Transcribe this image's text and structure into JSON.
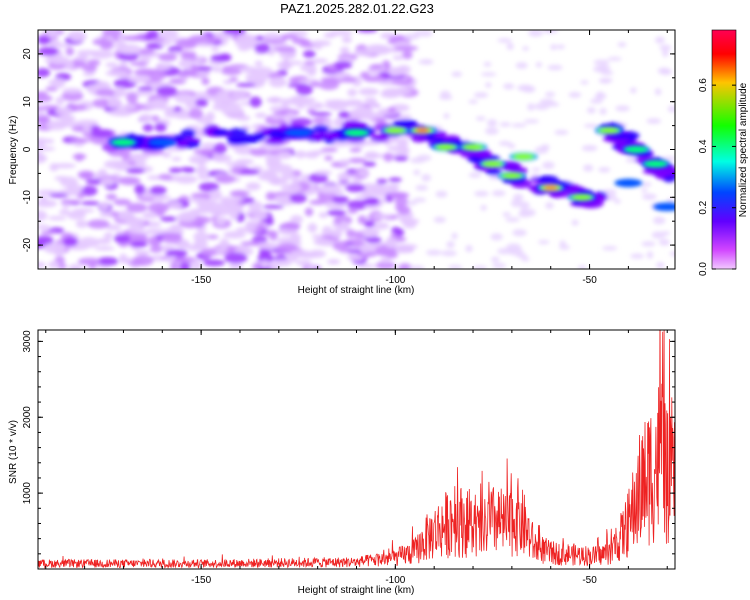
{
  "title": "PAZ1.2025.282.01.22.G23",
  "chart_data": [
    {
      "type": "heatmap",
      "xlabel": "Height of straight line (km)",
      "ylabel": "Frequency (Hz)",
      "xlim": [
        -192,
        -28
      ],
      "ylim": [
        -25,
        25
      ],
      "xticks": [
        -150,
        -100,
        -50
      ],
      "xtick_labels": [
        "-150",
        "-100",
        "-50"
      ],
      "yticks": [
        -20,
        -10,
        0,
        10,
        20
      ],
      "ytick_labels": [
        "-20",
        "-10",
        "0",
        "10",
        "20"
      ],
      "colorbar": {
        "label": "Normalized spectral amplitude",
        "range": [
          0,
          0.78
        ],
        "ticks": [
          0.0,
          0.2,
          0.4,
          0.6
        ],
        "tick_labels": [
          "0.0",
          "0.2",
          "0.4",
          "0.6"
        ],
        "colors": [
          "#ffffff",
          "#c000ff",
          "#0000ff",
          "#00ffff",
          "#00ff00",
          "#ffff00",
          "#ff0000",
          "#ff0080"
        ]
      },
      "ridge": [
        {
          "x": -172,
          "y": 1.5
        },
        {
          "x": -160,
          "y": 1.5
        },
        {
          "x": -145,
          "y": 3
        },
        {
          "x": -130,
          "y": 3
        },
        {
          "x": -115,
          "y": 3.5
        },
        {
          "x": -100,
          "y": 4
        },
        {
          "x": -93,
          "y": 4
        },
        {
          "x": -85,
          "y": 0.5
        },
        {
          "x": -78,
          "y": -2
        },
        {
          "x": -70,
          "y": -5
        },
        {
          "x": -60,
          "y": -8
        },
        {
          "x": -52,
          "y": -10
        },
        {
          "x": -47,
          "y": -11
        }
      ],
      "ridge2": [
        {
          "x": -45,
          "y": 4.5
        },
        {
          "x": -40,
          "y": 1
        },
        {
          "x": -35,
          "y": -2.5
        },
        {
          "x": -28,
          "y": -6
        }
      ],
      "peaks": [
        {
          "x": -170,
          "y": 1.5,
          "amp": 0.35
        },
        {
          "x": -160,
          "y": 1.5,
          "amp": 0.3
        },
        {
          "x": -125,
          "y": 3.5,
          "amp": 0.3
        },
        {
          "x": -110,
          "y": 3.5,
          "amp": 0.35
        },
        {
          "x": -100,
          "y": 4,
          "amp": 0.5
        },
        {
          "x": -93,
          "y": 4,
          "amp": 0.78
        },
        {
          "x": -87,
          "y": 0.5,
          "amp": 0.55
        },
        {
          "x": -80,
          "y": 0.5,
          "amp": 0.45
        },
        {
          "x": -75,
          "y": -3,
          "amp": 0.5
        },
        {
          "x": -70,
          "y": -5.5,
          "amp": 0.5
        },
        {
          "x": -67,
          "y": -1.5,
          "amp": 0.45
        },
        {
          "x": -60,
          "y": -8,
          "amp": 0.62
        },
        {
          "x": -52,
          "y": -10,
          "amp": 0.5
        },
        {
          "x": -45,
          "y": 4,
          "amp": 0.45
        },
        {
          "x": -38,
          "y": 0,
          "amp": 0.4
        },
        {
          "x": -33,
          "y": -3,
          "amp": 0.35
        },
        {
          "x": -40,
          "y": -7,
          "amp": 0.3
        },
        {
          "x": -30,
          "y": -12,
          "amp": 0.3
        }
      ]
    },
    {
      "type": "line",
      "xlabel": "Height of straight line (km)",
      "ylabel": "SNR (10 * v/v)",
      "xlim": [
        -192,
        -28
      ],
      "ylim": [
        0,
        3150
      ],
      "xticks": [
        -150,
        -100,
        -50
      ],
      "xtick_labels": [
        "-150",
        "-100",
        "-50"
      ],
      "yticks": [
        1000,
        2000,
        3000
      ],
      "ytick_labels": [
        "1000",
        "2000",
        "3000"
      ],
      "line_color": "#ee2222",
      "envelope_km": [
        -192,
        -150,
        -110,
        -100,
        -95,
        -92,
        -88,
        -85,
        -82,
        -78,
        -76,
        -74,
        -71,
        -69,
        -67,
        -64,
        -60,
        -55,
        -52,
        -48,
        -44,
        -40,
        -37,
        -34,
        -31,
        -30,
        -28
      ],
      "envelope_snr": [
        110,
        110,
        140,
        230,
        350,
        620,
        850,
        1000,
        950,
        720,
        900,
        1000,
        850,
        1100,
        900,
        450,
        320,
        300,
        280,
        260,
        380,
        900,
        1600,
        2000,
        2400,
        1800,
        1700
      ]
    }
  ]
}
